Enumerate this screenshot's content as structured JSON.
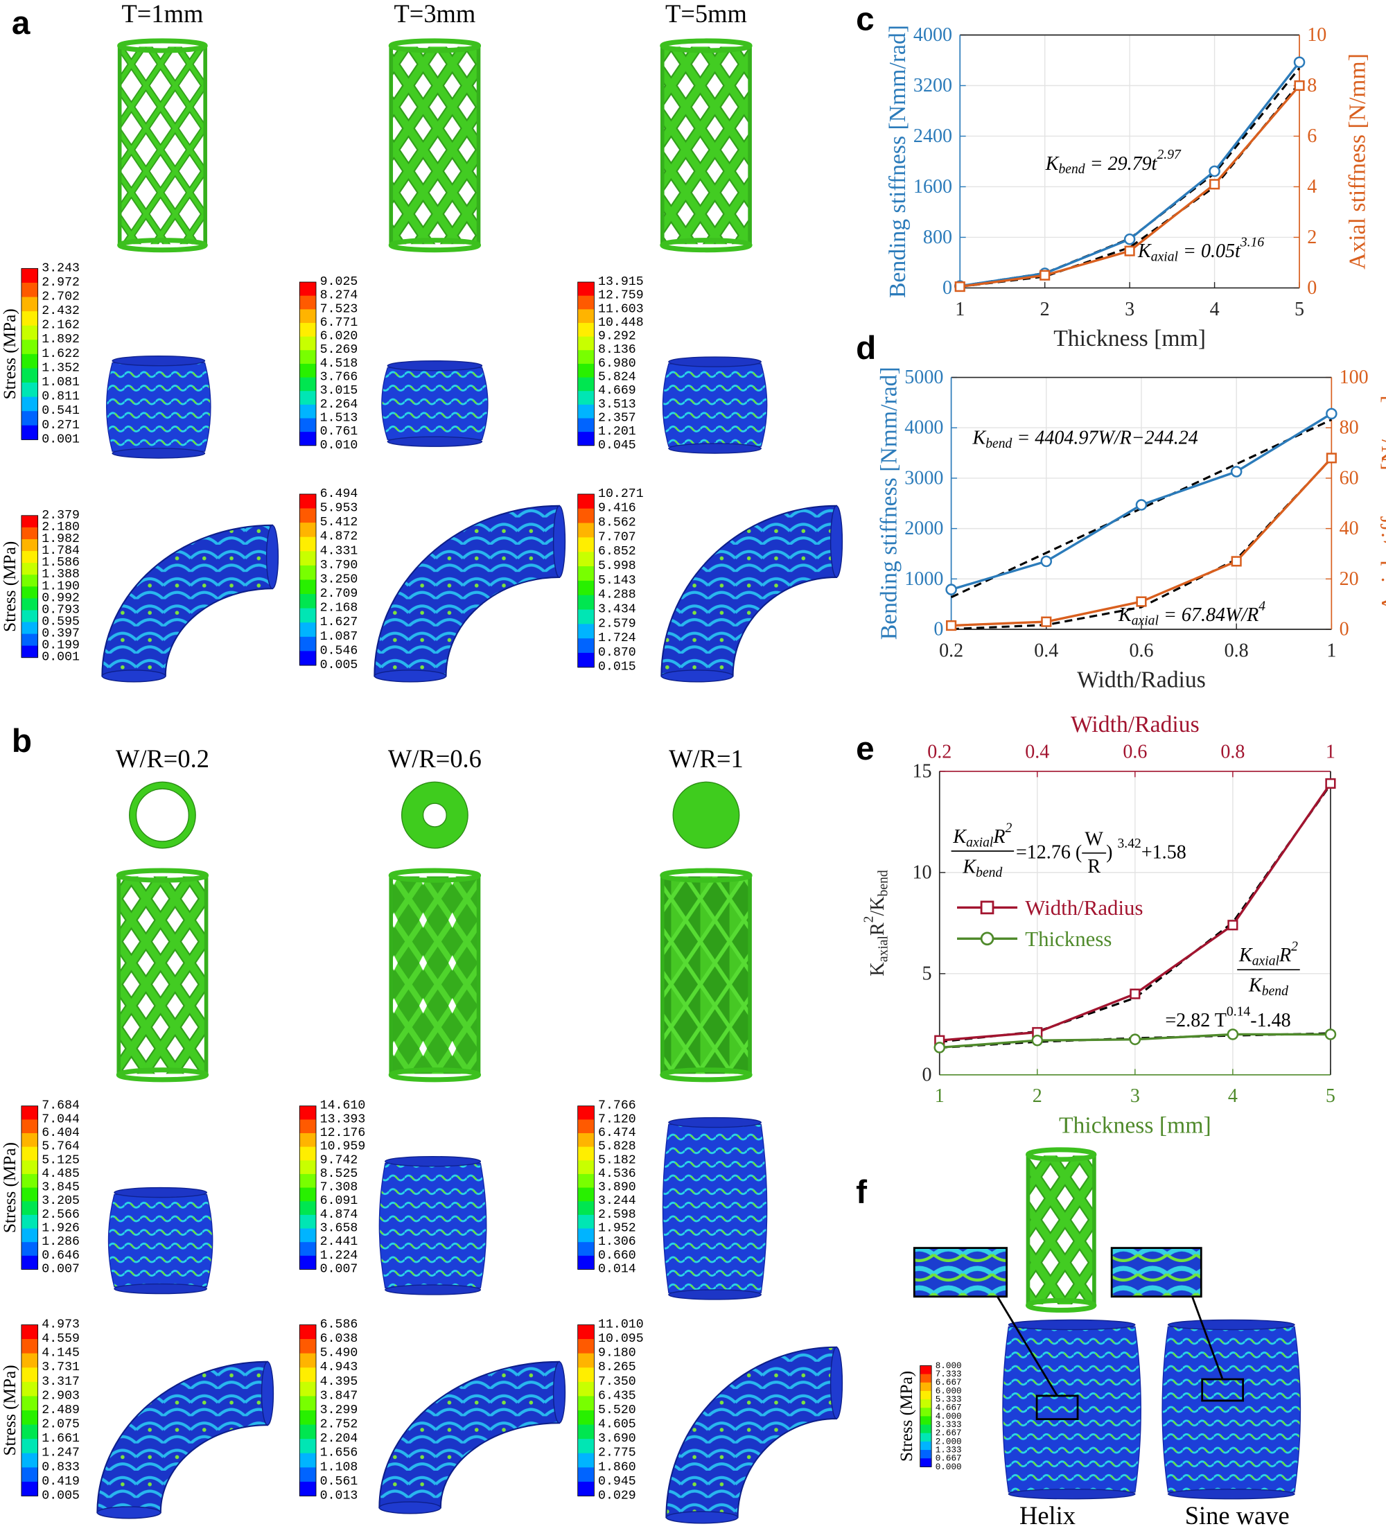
{
  "panel_labels": [
    "a",
    "b",
    "c",
    "d",
    "e",
    "f"
  ],
  "stress_label": "Stress (MPa)",
  "panel_a": {
    "columns": [
      "T=1mm",
      "T=3mm",
      "T=5mm"
    ],
    "colorbars_compression": [
      [
        "3.243",
        "2.972",
        "2.702",
        "2.432",
        "2.162",
        "1.892",
        "1.622",
        "1.352",
        "1.081",
        "0.811",
        "0.541",
        "0.271",
        "0.001"
      ],
      [
        "9.025",
        "8.274",
        "7.523",
        "6.771",
        "6.020",
        "5.269",
        "4.518",
        "3.766",
        "3.015",
        "2.264",
        "1.513",
        "0.761",
        "0.010"
      ],
      [
        "13.915",
        "12.759",
        "11.603",
        "10.448",
        "9.292",
        "8.136",
        "6.980",
        "5.824",
        "4.669",
        "3.513",
        "2.357",
        "1.201",
        "0.045"
      ]
    ],
    "colorbars_bending": [
      [
        "2.379",
        "2.180",
        "1.982",
        "1.784",
        "1.586",
        "1.388",
        "1.190",
        "0.992",
        "0.793",
        "0.595",
        "0.397",
        "0.199",
        "0.001"
      ],
      [
        "6.494",
        "5.953",
        "5.412",
        "4.872",
        "4.331",
        "3.790",
        "3.250",
        "2.709",
        "2.168",
        "1.627",
        "1.087",
        "0.546",
        "0.005"
      ],
      [
        "10.271",
        "9.416",
        "8.562",
        "7.707",
        "6.852",
        "5.998",
        "5.143",
        "4.288",
        "3.434",
        "2.579",
        "1.724",
        "0.870",
        "0.015"
      ]
    ]
  },
  "panel_b": {
    "columns": [
      "W/R=0.2",
      "W/R=0.6",
      "W/R=1"
    ],
    "colorbars_compression": [
      [
        "7.684",
        "7.044",
        "6.404",
        "5.764",
        "5.125",
        "4.485",
        "3.845",
        "3.205",
        "2.566",
        "1.926",
        "1.286",
        "0.646",
        "0.007"
      ],
      [
        "14.610",
        "13.393",
        "12.176",
        "10.959",
        "9.742",
        "8.525",
        "7.308",
        "6.091",
        "4.874",
        "3.658",
        "2.441",
        "1.224",
        "0.007"
      ],
      [
        "7.766",
        "7.120",
        "6.474",
        "5.828",
        "5.182",
        "4.536",
        "3.890",
        "3.244",
        "2.598",
        "1.952",
        "1.306",
        "0.660",
        "0.014"
      ]
    ],
    "colorbars_bending": [
      [
        "4.973",
        "4.559",
        "4.145",
        "3.731",
        "3.317",
        "2.903",
        "2.489",
        "2.075",
        "1.661",
        "1.247",
        "0.833",
        "0.419",
        "0.005"
      ],
      [
        "6.586",
        "6.038",
        "5.490",
        "4.943",
        "4.395",
        "3.847",
        "3.299",
        "2.752",
        "2.204",
        "1.656",
        "1.108",
        "0.561",
        "0.013"
      ],
      [
        "11.010",
        "10.095",
        "9.180",
        "8.265",
        "7.350",
        "6.435",
        "5.520",
        "4.605",
        "3.690",
        "2.775",
        "1.860",
        "0.945",
        "0.029"
      ]
    ]
  },
  "panel_f": {
    "colorbar": [
      "8.000",
      "7.333",
      "6.667",
      "6.000",
      "5.333",
      "4.667",
      "4.000",
      "3.333",
      "2.667",
      "2.000",
      "1.333",
      "0.667",
      "0.000"
    ],
    "labels": [
      "Helix",
      "Sine wave"
    ]
  },
  "chart_data": [
    {
      "type": "line",
      "xlabel": "Thickness [mm]",
      "ylabel": "Bending stiffness [Nmm/rad]",
      "y2label": "Axial stiffness [N/mm]",
      "x": [
        1,
        2,
        3,
        4,
        5
      ],
      "xlim": [
        1,
        5
      ],
      "xticks": [
        1,
        2,
        3,
        4,
        5
      ],
      "ylim": [
        0,
        4000
      ],
      "yticks": [
        0,
        800,
        1600,
        2400,
        3200,
        4000
      ],
      "y2lim": [
        0,
        10
      ],
      "y2ticks": [
        0,
        2,
        4,
        6,
        8,
        10
      ],
      "grid": true,
      "series": [
        {
          "color": "#2b7bba",
          "marker": "circle",
          "values": [
            30,
            230,
            770,
            1846,
            3570
          ]
        },
        {
          "color": "#d95f1e",
          "marker": "square",
          "axis": "y2",
          "values": [
            0.05,
            0.5,
            1.46,
            4.1,
            8.0
          ]
        },
        {
          "color": "#000000",
          "dashed": true,
          "values": [
            29.8,
            233,
            779,
            1812,
            3477
          ]
        },
        {
          "color": "#000000",
          "dashed": true,
          "axis": "y2",
          "values": [
            0.05,
            0.45,
            1.6,
            4.0,
            8.1
          ]
        }
      ],
      "annotations": [
        {
          "parts": [
            {
              "text": "K"
            },
            {
              "text": "bend",
              "sub": true
            },
            {
              "text": " = 29.79t"
            },
            {
              "text": "2.97",
              "sup": true
            }
          ]
        },
        {
          "parts": [
            {
              "text": "K"
            },
            {
              "text": "axial",
              "sub": true
            },
            {
              "text": " = 0.05t"
            },
            {
              "text": "3.16",
              "sup": true
            }
          ]
        }
      ]
    },
    {
      "type": "line",
      "xlabel": "Width/Radius",
      "ylabel": "Bending stiffness [Nmm/rad]",
      "y2label": "Axial stiffness [N/mm]",
      "x": [
        0.2,
        0.4,
        0.6,
        0.8,
        1
      ],
      "xlim": [
        0.2,
        1
      ],
      "xticks": [
        0.2,
        0.4,
        0.6,
        0.8,
        1
      ],
      "ylim": [
        0,
        5000
      ],
      "yticks": [
        0,
        1000,
        2000,
        3000,
        4000,
        5000
      ],
      "y2lim": [
        0,
        100
      ],
      "y2ticks": [
        0,
        20,
        40,
        60,
        80,
        100
      ],
      "grid": true,
      "series": [
        {
          "color": "#2b7bba",
          "marker": "circle",
          "values": [
            790,
            1350,
            2470,
            3130,
            4280
          ]
        },
        {
          "color": "#d95f1e",
          "marker": "square",
          "axis": "y2",
          "values": [
            1.5,
            3,
            11,
            27,
            68
          ]
        },
        {
          "color": "#000000",
          "dashed": true,
          "values": [
            637,
            1518,
            2399,
            3280,
            4161
          ]
        },
        {
          "color": "#000000",
          "dashed": true,
          "axis": "y2",
          "values": [
            0.11,
            1.74,
            8.79,
            27.79,
            67.84
          ]
        }
      ],
      "annotations": [
        {
          "parts": [
            {
              "text": "K"
            },
            {
              "text": "bend",
              "sub": true
            },
            {
              "text": " = 4404.97W/R−244.24"
            }
          ]
        },
        {
          "parts": [
            {
              "text": "K"
            },
            {
              "text": "axial",
              "sub": true
            },
            {
              "text": " = 67.84W/R"
            },
            {
              "text": "4",
              "sup": true
            }
          ]
        }
      ]
    },
    {
      "type": "line",
      "xlabel": "Thickness [mm]",
      "x2label": "Width/Radius",
      "ylabel": [
        {
          "text": "K"
        },
        {
          "text": "axial",
          "sub": true
        },
        {
          "text": "R"
        },
        {
          "text": "2",
          "sup": true
        },
        {
          "text": "/K"
        },
        {
          "text": "bend",
          "sub": true
        }
      ],
      "x": [
        1,
        2,
        3,
        4,
        5
      ],
      "xlim": [
        1,
        5
      ],
      "xticks": [
        1,
        2,
        3,
        4,
        5
      ],
      "x2lim": [
        0.2,
        1
      ],
      "x2ticks": [
        0.2,
        0.4,
        0.6,
        0.8,
        1
      ],
      "ylim": [
        0,
        15
      ],
      "yticks": [
        0,
        5,
        10,
        15
      ],
      "grid": true,
      "legend": "center left",
      "series": [
        {
          "name": "Width/Radius",
          "color": "#a2142f",
          "marker": "square",
          "axis": "x2",
          "x": [
            0.2,
            0.4,
            0.6,
            0.8,
            1
          ],
          "values": [
            1.7,
            2.1,
            4.0,
            7.4,
            14.4
          ]
        },
        {
          "name": "Thickness",
          "color": "#4f8a2b",
          "marker": "circle",
          "values": [
            1.35,
            1.7,
            1.75,
            2.0,
            2.0
          ]
        },
        {
          "color": "#000000",
          "dashed": true,
          "axis": "x2",
          "x": [
            0.2,
            0.4,
            0.6,
            0.8,
            1
          ],
          "values": [
            1.63,
            2.14,
            3.8,
            7.53,
            14.34
          ]
        },
        {
          "color": "#000000",
          "dashed": true,
          "values": [
            1.34,
            1.63,
            1.81,
            1.94,
            2.05
          ]
        }
      ],
      "annotations": [
        {
          "numerator": [
            {
              "text": "K"
            },
            {
              "text": "axial",
              "sub": true
            },
            {
              "text": "R"
            },
            {
              "text": "2",
              "sup": true
            }
          ],
          "denominator": [
            {
              "text": "K"
            },
            {
              "text": "bend",
              "sub": true
            }
          ],
          "rest": [
            {
              "text": "=12.76 ("
            },
            {
              "num": "W",
              "den": "R"
            },
            {
              "text": ") "
            },
            {
              "text": "3.42",
              "sup": true
            },
            {
              "text": "+1.58"
            }
          ]
        },
        {
          "numerator": [
            {
              "text": "K"
            },
            {
              "text": "axial",
              "sub": true
            },
            {
              "text": "R"
            },
            {
              "text": "2",
              "sup": true
            }
          ],
          "denominator": [
            {
              "text": "K"
            },
            {
              "text": "bend",
              "sub": true
            }
          ],
          "rest": [
            {
              "text": "=2.82 T"
            },
            {
              "text": "0.14",
              "sup": true
            },
            {
              "text": "-1.48"
            }
          ]
        }
      ]
    }
  ]
}
